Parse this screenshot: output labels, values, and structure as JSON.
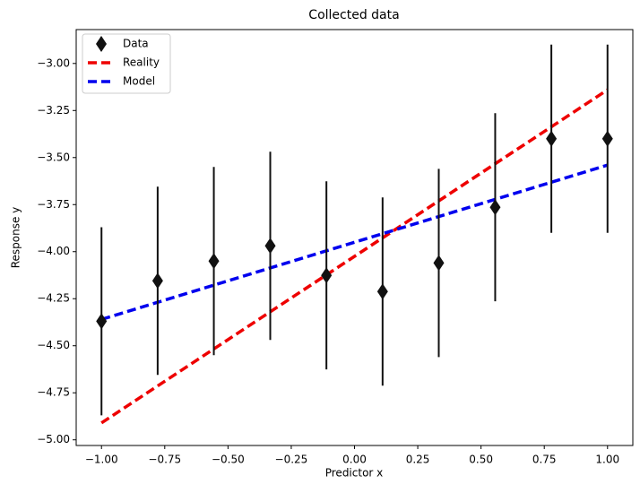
{
  "chart_data": {
    "type": "scatter",
    "title": "Collected data",
    "xlabel": "Predictor x",
    "ylabel": "Response y",
    "xlim": [
      -1.1,
      1.1
    ],
    "ylim": [
      -5.03,
      -2.82
    ],
    "xticks": [
      {
        "value": -1.0,
        "label": "−1.00"
      },
      {
        "value": -0.75,
        "label": "−0.75"
      },
      {
        "value": -0.5,
        "label": "−0.50"
      },
      {
        "value": -0.25,
        "label": "−0.25"
      },
      {
        "value": 0.0,
        "label": "0.00"
      },
      {
        "value": 0.25,
        "label": "0.25"
      },
      {
        "value": 0.5,
        "label": "0.50"
      },
      {
        "value": 0.75,
        "label": "0.75"
      },
      {
        "value": 1.0,
        "label": "1.00"
      }
    ],
    "yticks": [
      {
        "value": -5.0,
        "label": "−5.00"
      },
      {
        "value": -4.75,
        "label": "−4.75"
      },
      {
        "value": -4.5,
        "label": "−4.50"
      },
      {
        "value": -4.25,
        "label": "−4.25"
      },
      {
        "value": -4.0,
        "label": "−4.00"
      },
      {
        "value": -3.75,
        "label": "−3.75"
      },
      {
        "value": -3.5,
        "label": "−3.50"
      },
      {
        "value": -3.25,
        "label": "−3.25"
      },
      {
        "value": -3.0,
        "label": "−3.00"
      }
    ],
    "legend": "upper left",
    "series": [
      {
        "name": "Data",
        "kind": "errorbar",
        "marker": "diamond",
        "color": "#111111",
        "x": [
          -1.0,
          -0.778,
          -0.556,
          -0.333,
          -0.111,
          0.111,
          0.333,
          0.556,
          0.778,
          1.0
        ],
        "values": [
          -4.37,
          -4.155,
          -4.05,
          -3.969,
          -4.126,
          -4.212,
          -4.06,
          -3.764,
          -3.4,
          -3.4
        ],
        "errors": [
          0.5,
          0.5,
          0.5,
          0.5,
          0.5,
          0.5,
          0.5,
          0.5,
          0.5,
          0.5
        ]
      },
      {
        "name": "Reality",
        "kind": "line",
        "dashed": true,
        "color": "#ee0000",
        "x": [
          -1.0,
          1.0
        ],
        "values": [
          -4.91,
          -3.14
        ]
      },
      {
        "name": "Model",
        "kind": "line",
        "dashed": true,
        "color": "#0000ee",
        "x": [
          -1.0,
          1.0
        ],
        "values": [
          -4.36,
          -3.54
        ]
      }
    ]
  }
}
